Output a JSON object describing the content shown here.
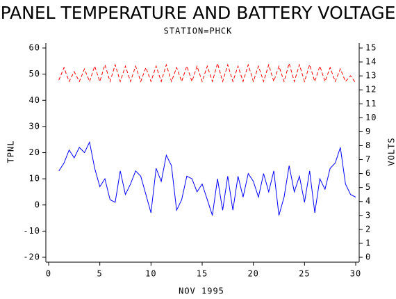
{
  "chart_data": {
    "type": "line",
    "title": "PANEL TEMPERATURE AND BATTERY VOLTAGE",
    "subtitle": "STATION=PHCK",
    "xlabel": "NOV 1995",
    "ylabel": "TPNL",
    "y2label": "VOLTS",
    "x": [
      1,
      1.5,
      2,
      2.5,
      3,
      3.5,
      4,
      4.5,
      5,
      5.5,
      6,
      6.5,
      7,
      7.5,
      8,
      8.5,
      9,
      9.5,
      10,
      10.5,
      11,
      11.5,
      12,
      12.5,
      13,
      13.5,
      14,
      14.5,
      15,
      15.5,
      16,
      16.5,
      17,
      17.5,
      18,
      18.5,
      19,
      19.5,
      20,
      20.5,
      21,
      21.5,
      22,
      22.5,
      23,
      23.5,
      24,
      24.5,
      25,
      25.5,
      26,
      26.5,
      27,
      27.5,
      28,
      28.5,
      29,
      29.5,
      30
    ],
    "series": [
      {
        "name": "TPNL",
        "color": "#0000ff",
        "axis": "y",
        "dashed": false,
        "values": [
          13,
          16,
          21,
          18,
          22,
          20,
          24,
          14,
          7,
          10,
          2,
          1,
          13,
          4,
          8,
          13,
          11,
          4,
          -3,
          14,
          9,
          19,
          15,
          -2,
          2,
          11,
          10,
          5,
          8,
          2,
          -4,
          10,
          -2,
          11,
          -2,
          11,
          3,
          12,
          9,
          3,
          12,
          5,
          13,
          -4,
          3,
          15,
          5,
          11,
          1,
          13,
          -3,
          10,
          6,
          14,
          16,
          22,
          8,
          4,
          3
        ]
      },
      {
        "name": "VOLTS",
        "color": "#ff0000",
        "axis": "y2",
        "dashed": true,
        "values": [
          12.7,
          13.6,
          12.6,
          13.3,
          12.6,
          13.5,
          12.6,
          13.7,
          12.6,
          13.8,
          12.6,
          13.8,
          12.6,
          13.7,
          12.6,
          13.7,
          12.6,
          13.6,
          12.6,
          13.7,
          12.6,
          13.8,
          12.6,
          13.6,
          12.6,
          13.7,
          12.6,
          13.7,
          12.6,
          13.7,
          12.6,
          13.9,
          12.6,
          13.8,
          12.6,
          13.7,
          12.6,
          13.8,
          12.6,
          13.7,
          12.6,
          13.8,
          12.6,
          13.7,
          12.6,
          13.9,
          12.6,
          13.8,
          12.6,
          13.8,
          12.6,
          13.7,
          12.6,
          13.6,
          12.6,
          13.5,
          12.6,
          13.0,
          12.5
        ]
      }
    ],
    "xlim": [
      0,
      30
    ],
    "xticks": [
      0,
      5,
      10,
      15,
      20,
      25,
      30
    ],
    "ylim": [
      -20,
      60
    ],
    "yticks": [
      -20,
      -10,
      0,
      10,
      20,
      30,
      40,
      50,
      60
    ],
    "y2lim": [
      0,
      15
    ],
    "y2ticks": [
      0,
      1,
      2,
      3,
      4,
      5,
      6,
      7,
      8,
      9,
      10,
      11,
      12,
      13,
      14,
      15
    ]
  }
}
